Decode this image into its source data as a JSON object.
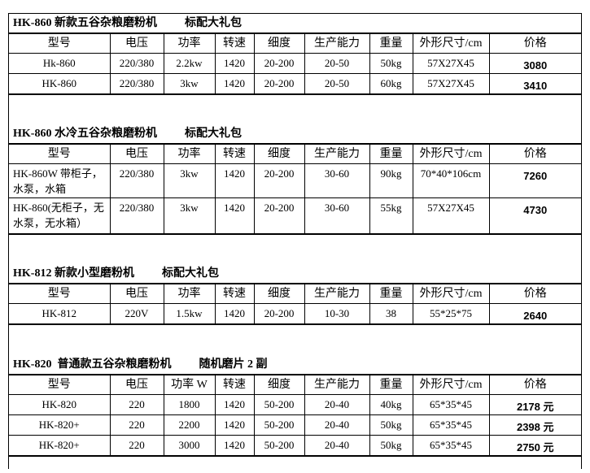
{
  "headers": [
    "型号",
    "电压",
    "功率",
    "转速",
    "细度",
    "生产能力",
    "重量",
    "外形尺寸/cm",
    "价格"
  ],
  "headers_820": [
    "型号",
    "电压",
    "功率 W",
    "转速",
    "细度",
    "生产能力",
    "重量",
    "外形尺寸/cm",
    "价格"
  ],
  "sections": [
    {
      "title": "HK-860 新款五谷杂粮磨粉机",
      "note": "标配大礼包",
      "rows": [
        [
          "Hk-860",
          "220/380",
          "2.2kw",
          "1420",
          "20-200",
          "20-50",
          "50kg",
          "57X27X45",
          "3080"
        ],
        [
          "HK-860",
          "220/380",
          "3kw",
          "1420",
          "20-200",
          "20-50",
          "60kg",
          "57X27X45",
          "3410"
        ]
      ]
    },
    {
      "title": "HK-860 水冷五谷杂粮磨粉机",
      "note": "标配大礼包",
      "rows": [
        [
          "HK-860W 带柜子，水泵，水箱",
          "220/380",
          "3kw",
          "1420",
          "20-200",
          "30-60",
          "90kg",
          "70*40*106cm",
          "7260"
        ],
        [
          "HK-860(无柜子，无水泵，无水箱）",
          "220/380",
          "3kw",
          "1420",
          "20-200",
          "30-60",
          "55kg",
          "57X27X45",
          "4730"
        ]
      ]
    },
    {
      "title": "HK-812 新款小型磨粉机",
      "note": "标配大礼包",
      "rows": [
        [
          "HK-812",
          "220V",
          "1.5kw",
          "1420",
          "20-200",
          "10-30",
          "38",
          "55*25*75",
          "2640"
        ]
      ]
    },
    {
      "title": "HK-820  普通款五谷杂粮磨粉机",
      "note": "随机磨片 2 副",
      "rows": [
        [
          "HK-820",
          "220",
          "1800",
          "1420",
          "50-200",
          "20-40",
          "40kg",
          "65*35*45",
          "2178 元"
        ],
        [
          "HK-820+",
          "220",
          "2200",
          "1420",
          "50-200",
          "20-40",
          "50kg",
          "65*35*45",
          "2398 元"
        ],
        [
          "HK-820+",
          "220",
          "3000",
          "1420",
          "50-200",
          "20-40",
          "50kg",
          "65*35*45",
          "2750 元"
        ]
      ]
    }
  ]
}
